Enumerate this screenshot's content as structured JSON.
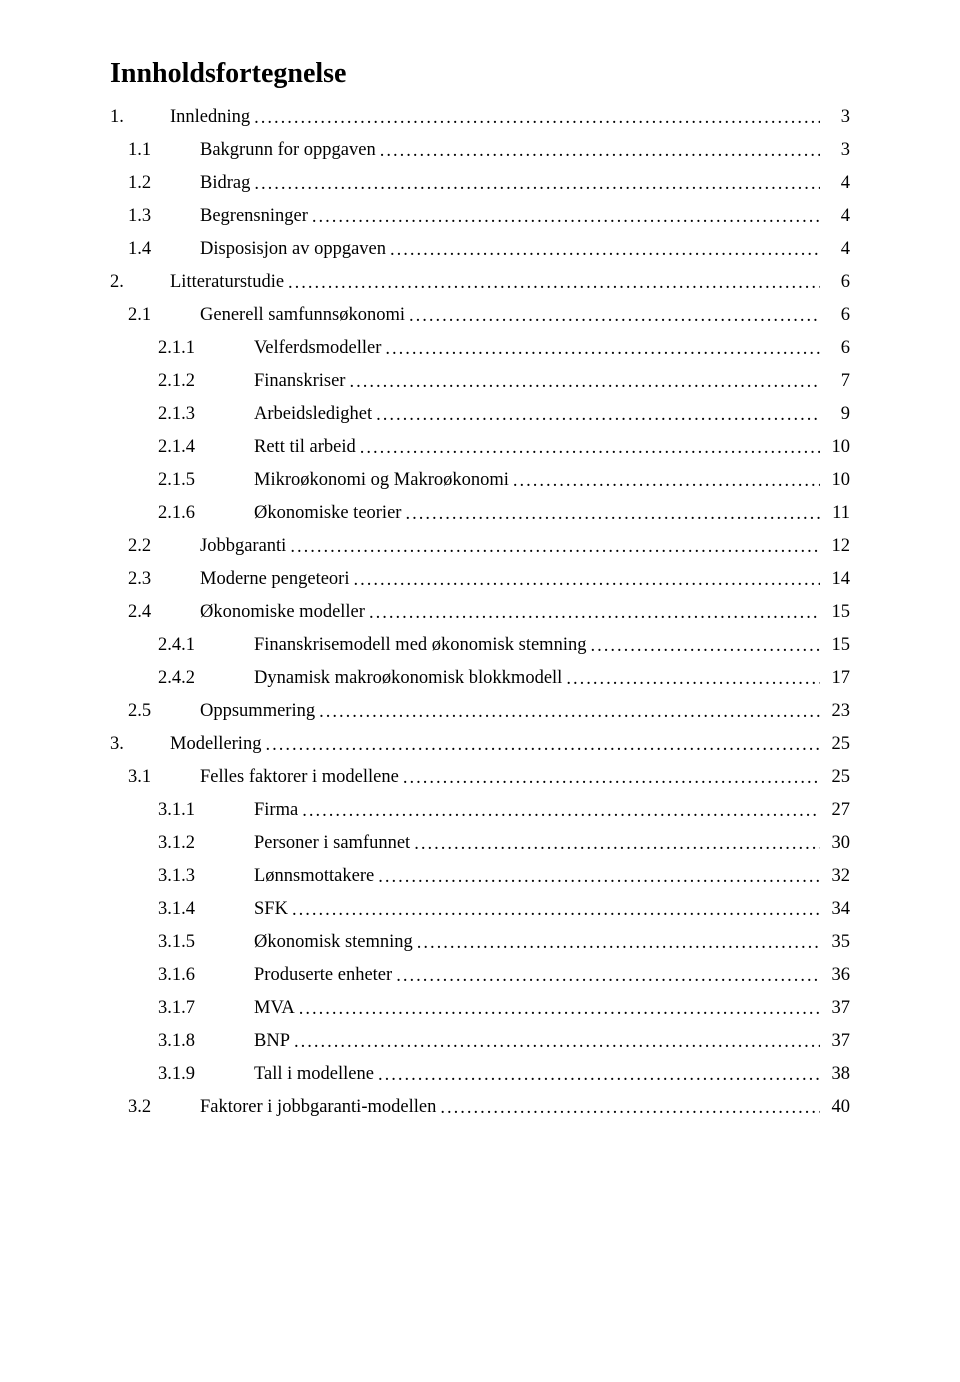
{
  "title": "Innholdsfortegnelse",
  "entries": [
    {
      "level": 0,
      "num": "1.",
      "text": "Innledning",
      "page": "3"
    },
    {
      "level": 1,
      "num": "1.1",
      "text": "Bakgrunn for oppgaven",
      "page": "3"
    },
    {
      "level": 1,
      "num": "1.2",
      "text": "Bidrag",
      "page": "4"
    },
    {
      "level": 1,
      "num": "1.3",
      "text": "Begrensninger",
      "page": "4"
    },
    {
      "level": 1,
      "num": "1.4",
      "text": "Disposisjon av oppgaven",
      "page": "4"
    },
    {
      "level": 0,
      "num": "2.",
      "text": "Litteraturstudie",
      "page": "6"
    },
    {
      "level": 1,
      "num": "2.1",
      "text": "Generell samfunnsøkonomi",
      "page": "6"
    },
    {
      "level": 2,
      "num": "2.1.1",
      "text": "Velferdsmodeller",
      "page": "6"
    },
    {
      "level": 2,
      "num": "2.1.2",
      "text": "Finanskriser",
      "page": "7"
    },
    {
      "level": 2,
      "num": "2.1.3",
      "text": "Arbeidsledighet",
      "page": "9"
    },
    {
      "level": 2,
      "num": "2.1.4",
      "text": "Rett til arbeid",
      "page": "10"
    },
    {
      "level": 2,
      "num": "2.1.5",
      "text": "Mikroøkonomi og Makroøkonomi",
      "page": "10"
    },
    {
      "level": 2,
      "num": "2.1.6",
      "text": "Økonomiske teorier",
      "page": "11"
    },
    {
      "level": 1,
      "num": "2.2",
      "text": "Jobbgaranti",
      "page": "12"
    },
    {
      "level": 1,
      "num": "2.3",
      "text": "Moderne pengeteori",
      "page": "14"
    },
    {
      "level": 1,
      "num": "2.4",
      "text": "Økonomiske modeller",
      "page": "15"
    },
    {
      "level": 2,
      "num": "2.4.1",
      "text": "Finanskrisemodell med økonomisk stemning",
      "page": "15"
    },
    {
      "level": 2,
      "num": "2.4.2",
      "text": "Dynamisk makroøkonomisk blokkmodell",
      "page": "17"
    },
    {
      "level": 1,
      "num": "2.5",
      "text": "Oppsummering",
      "page": "23"
    },
    {
      "level": 0,
      "num": "3.",
      "text": "Modellering",
      "page": "25"
    },
    {
      "level": 1,
      "num": "3.1",
      "text": "Felles faktorer i modellene",
      "page": "25"
    },
    {
      "level": 2,
      "num": "3.1.1",
      "text": "Firma",
      "page": "27"
    },
    {
      "level": 2,
      "num": "3.1.2",
      "text": "Personer i samfunnet",
      "page": "30"
    },
    {
      "level": 2,
      "num": "3.1.3",
      "text": "Lønnsmottakere",
      "page": "32"
    },
    {
      "level": 2,
      "num": "3.1.4",
      "text": "SFK",
      "page": "34"
    },
    {
      "level": 2,
      "num": "3.1.5",
      "text": "Økonomisk stemning",
      "page": "35"
    },
    {
      "level": 2,
      "num": "3.1.6",
      "text": "Produserte enheter",
      "page": "36"
    },
    {
      "level": 2,
      "num": "3.1.7",
      "text": "MVA",
      "page": "37"
    },
    {
      "level": 2,
      "num": "3.1.8",
      "text": "BNP",
      "page": "37"
    },
    {
      "level": 2,
      "num": "3.1.9",
      "text": "Tall i modellene",
      "page": "38"
    },
    {
      "level": 1,
      "num": "3.2",
      "text": "Faktorer i jobbgaranti-modellen",
      "page": "40"
    }
  ]
}
